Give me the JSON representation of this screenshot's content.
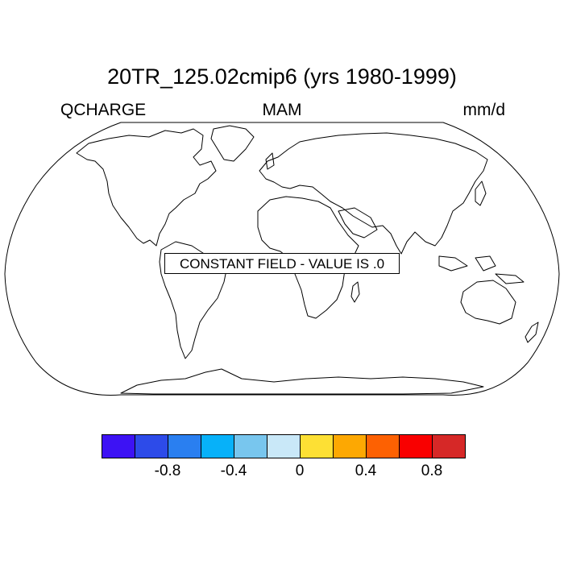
{
  "header": {
    "title": "20TR_125.02cmip6 (yrs 1980-1999)",
    "left_label": "QCHARGE",
    "center_label": "MAM",
    "right_label": "mm/d"
  },
  "map": {
    "projection": "robinson",
    "note": "CONSTANT FIELD - VALUE IS .0"
  },
  "colorbar": {
    "colors": [
      "#3d12f4",
      "#2d4be9",
      "#2a7ff0",
      "#07b1f9",
      "#78c6ee",
      "#c9e8f8",
      "#fde034",
      "#fda802",
      "#fd6102",
      "#f90000",
      "#d62827"
    ],
    "ticks": [
      {
        "value": -0.8,
        "label": "-0.8"
      },
      {
        "value": -0.4,
        "label": "-0.4"
      },
      {
        "value": 0,
        "label": "0"
      },
      {
        "value": 0.4,
        "label": "0.4"
      },
      {
        "value": 0.8,
        "label": "0.8"
      }
    ]
  }
}
